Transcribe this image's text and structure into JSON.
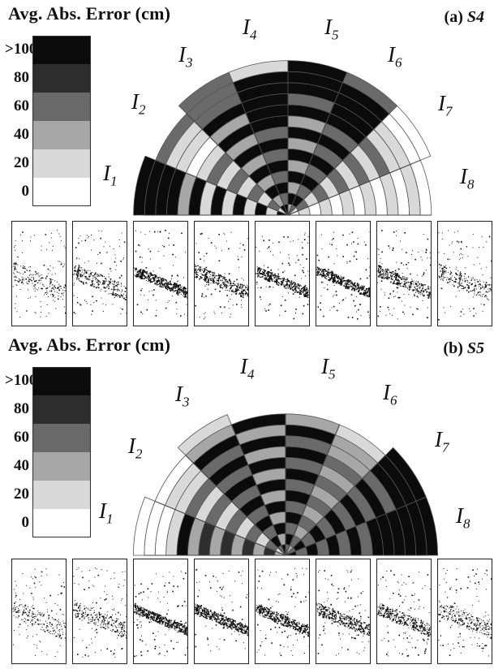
{
  "panels": [
    {
      "id": "a",
      "title": "Avg. Abs. Error (cm)",
      "tag_prefix": "(a) ",
      "tag_subject": "S4",
      "legend": [
        ">100",
        "80",
        "60",
        "40",
        "20",
        "0"
      ],
      "sector_labels": [
        "I",
        "I",
        "I",
        "I",
        "I",
        "I",
        "I",
        "I"
      ],
      "sector_indices": [
        "1",
        "2",
        "3",
        "4",
        "5",
        "6",
        "7",
        "8"
      ],
      "thumbnail_count": 8
    },
    {
      "id": "b",
      "title": "Avg. Abs. Error (cm)",
      "tag_prefix": "(b) ",
      "tag_subject": "S5",
      "legend": [
        ">100",
        "80",
        "60",
        "40",
        "20",
        "0"
      ],
      "sector_labels": [
        "I",
        "I",
        "I",
        "I",
        "I",
        "I",
        "I",
        "I"
      ],
      "sector_indices": [
        "1",
        "2",
        "3",
        "4",
        "5",
        "6",
        "7",
        "8"
      ],
      "thumbnail_count": 8
    }
  ]
}
